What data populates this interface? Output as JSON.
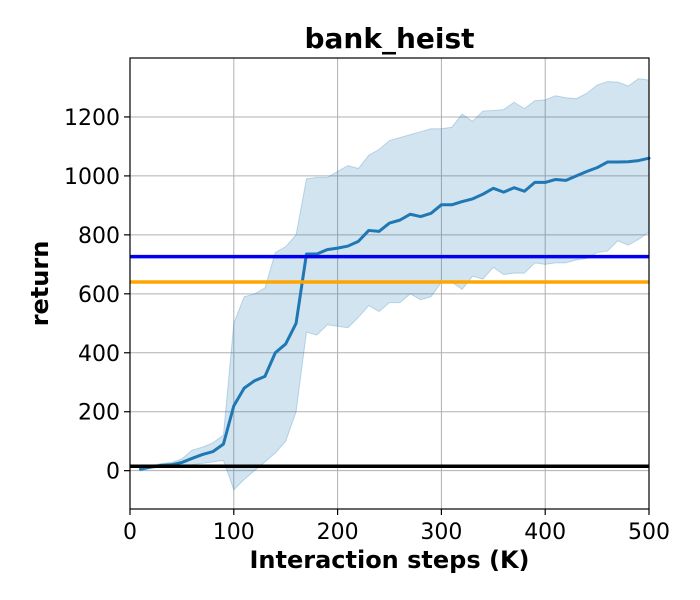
{
  "chart_data": {
    "type": "line",
    "title": "bank_heist",
    "xlabel": "Interaction steps (K)",
    "ylabel": "return",
    "xlim": [
      0,
      500
    ],
    "ylim": [
      -130,
      1400
    ],
    "xticks": [
      0,
      100,
      200,
      300,
      400,
      500
    ],
    "yticks": [
      0,
      200,
      400,
      600,
      800,
      1000,
      1200
    ],
    "grid": true,
    "series": [
      {
        "color": "#1f77b4",
        "band_color": "#1f77b4",
        "x": [
          10,
          20,
          30,
          40,
          50,
          60,
          70,
          80,
          90,
          100,
          110,
          120,
          130,
          140,
          150,
          160,
          170,
          180,
          190,
          200,
          210,
          220,
          230,
          240,
          250,
          260,
          270,
          280,
          290,
          300,
          310,
          320,
          330,
          340,
          350,
          360,
          370,
          380,
          390,
          400,
          410,
          420,
          430,
          440,
          450,
          460,
          470,
          480,
          490,
          500
        ],
        "y": [
          5,
          12,
          18,
          20,
          28,
          42,
          55,
          65,
          90,
          220,
          280,
          305,
          320,
          400,
          430,
          500,
          735,
          735,
          750,
          755,
          762,
          778,
          815,
          812,
          840,
          850,
          870,
          862,
          873,
          902,
          902,
          913,
          922,
          938,
          958,
          945,
          960,
          948,
          978,
          978,
          988,
          985,
          1000,
          1015,
          1028,
          1047,
          1047,
          1048,
          1052,
          1060
        ],
        "upper": [
          10,
          18,
          24,
          28,
          40,
          70,
          80,
          95,
          120,
          500,
          590,
          600,
          620,
          740,
          760,
          800,
          990,
          995,
          995,
          1015,
          1035,
          1025,
          1070,
          1090,
          1120,
          1130,
          1140,
          1150,
          1160,
          1160,
          1165,
          1210,
          1185,
          1220,
          1222,
          1225,
          1250,
          1228,
          1255,
          1258,
          1272,
          1265,
          1262,
          1280,
          1308,
          1320,
          1318,
          1305,
          1330,
          1325
        ],
        "lower": [
          0,
          8,
          12,
          12,
          15,
          20,
          25,
          30,
          35,
          -65,
          -30,
          0,
          30,
          60,
          100,
          200,
          470,
          460,
          495,
          490,
          485,
          520,
          560,
          540,
          570,
          570,
          600,
          580,
          590,
          640,
          640,
          615,
          660,
          650,
          690,
          665,
          670,
          670,
          705,
          700,
          705,
          705,
          715,
          720,
          740,
          745,
          780,
          765,
          785,
          810
        ]
      }
    ],
    "reference_lines": [
      {
        "y": 726,
        "color": "#0000ee"
      },
      {
        "y": 640,
        "color": "#ffa500"
      },
      {
        "y": 15,
        "color": "#000000"
      }
    ]
  }
}
